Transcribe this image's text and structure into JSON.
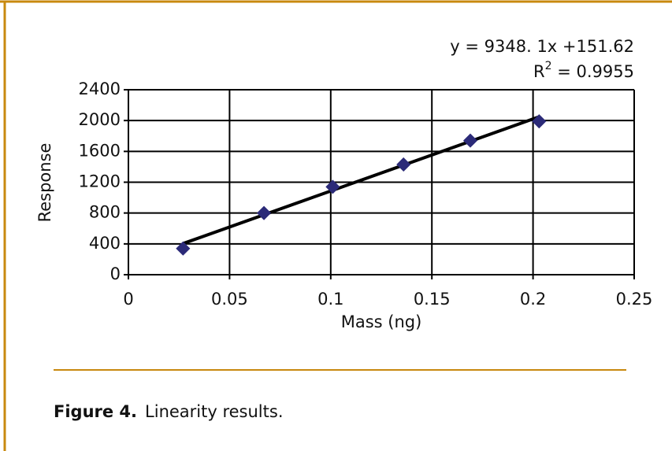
{
  "chart_data": {
    "type": "scatter",
    "equation": "y = 9348. 1x +151.62",
    "r2_base": "R",
    "r2_exponent": "2",
    "r2_rest": " = 0.9955",
    "x_label": "Mass (ng)",
    "y_label": "Response",
    "x": [
      0.027,
      0.067,
      0.101,
      0.136,
      0.169,
      0.203
    ],
    "values": [
      340,
      800,
      1140,
      1430,
      1740,
      1990
    ],
    "color": "#2b2a78",
    "trendline": {
      "x": [
        0.027,
        0.203
      ],
      "values": [
        404,
        2049
      ],
      "color": "#000000"
    },
    "xlim": [
      0,
      0.25
    ],
    "xticks": [
      0,
      0.05,
      0.1,
      0.15,
      0.2,
      0.25
    ],
    "ylim": [
      0,
      2400
    ],
    "yticks": [
      0,
      400,
      800,
      1200,
      1600,
      2000,
      2400
    ],
    "grid": true
  },
  "caption": {
    "label": "Figure 4.",
    "text": "Linearity results."
  }
}
